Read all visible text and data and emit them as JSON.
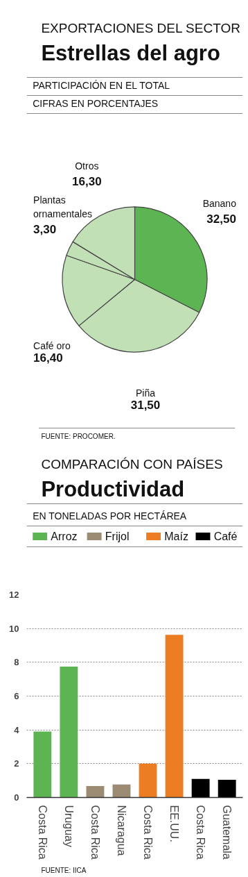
{
  "chart_data": [
    {
      "type": "pie",
      "subtitle": "EXPORTACIONES DEL SECTOR",
      "title": "Estrellas del agro",
      "annotations": [
        "PARTICIPACIÓN EN EL TOTAL",
        "CIFRAS EN PORCENTAJES",
        "FUENTE: PROCOMER."
      ],
      "categories": [
        "Banano",
        "Piña",
        "Café oro",
        "Plantas ornamentales",
        "Otros"
      ],
      "values": [
        32.5,
        31.5,
        16.4,
        3.3,
        16.3
      ],
      "value_labels": [
        "32,50",
        "31,50",
        "16,40",
        "3,30",
        "16,30"
      ],
      "colors": [
        "#5cb552",
        "#c1e0b5",
        "#c1e0b5",
        "#c1e0b5",
        "#c1e0b5"
      ]
    },
    {
      "type": "bar",
      "subtitle": "COMPARACIÓN CON PAÍSES",
      "title": "Productividad",
      "ylabel": "EN TONELADAS POR HECTÁREA",
      "annotations": [
        "FUENTE: IICA"
      ],
      "categories": [
        "Costa Rica",
        "Uruguay",
        "Costa Rica",
        "Nicaragua",
        "Costa Rica",
        "EE.UU.",
        "Costa Rica",
        "Guatemala"
      ],
      "series": [
        {
          "name": "Arroz",
          "color": "#5cb552",
          "values": [
            3.9,
            7.75,
            null,
            null,
            null,
            null,
            null,
            null
          ]
        },
        {
          "name": "Frijol",
          "color": "#9a8b72",
          "values": [
            null,
            null,
            0.68,
            0.77,
            null,
            null,
            null,
            null
          ]
        },
        {
          "name": "Maíz",
          "color": "#ec7d22",
          "values": [
            null,
            null,
            null,
            null,
            2.0,
            9.63,
            null,
            null
          ]
        },
        {
          "name": "Café",
          "color": "#000000",
          "values": [
            null,
            null,
            null,
            null,
            null,
            null,
            1.1,
            1.05
          ]
        }
      ],
      "ylim": [
        0,
        12
      ],
      "yticks": [
        0,
        2,
        4,
        6,
        8,
        10,
        12
      ],
      "grid": "y",
      "legend": "top"
    }
  ]
}
